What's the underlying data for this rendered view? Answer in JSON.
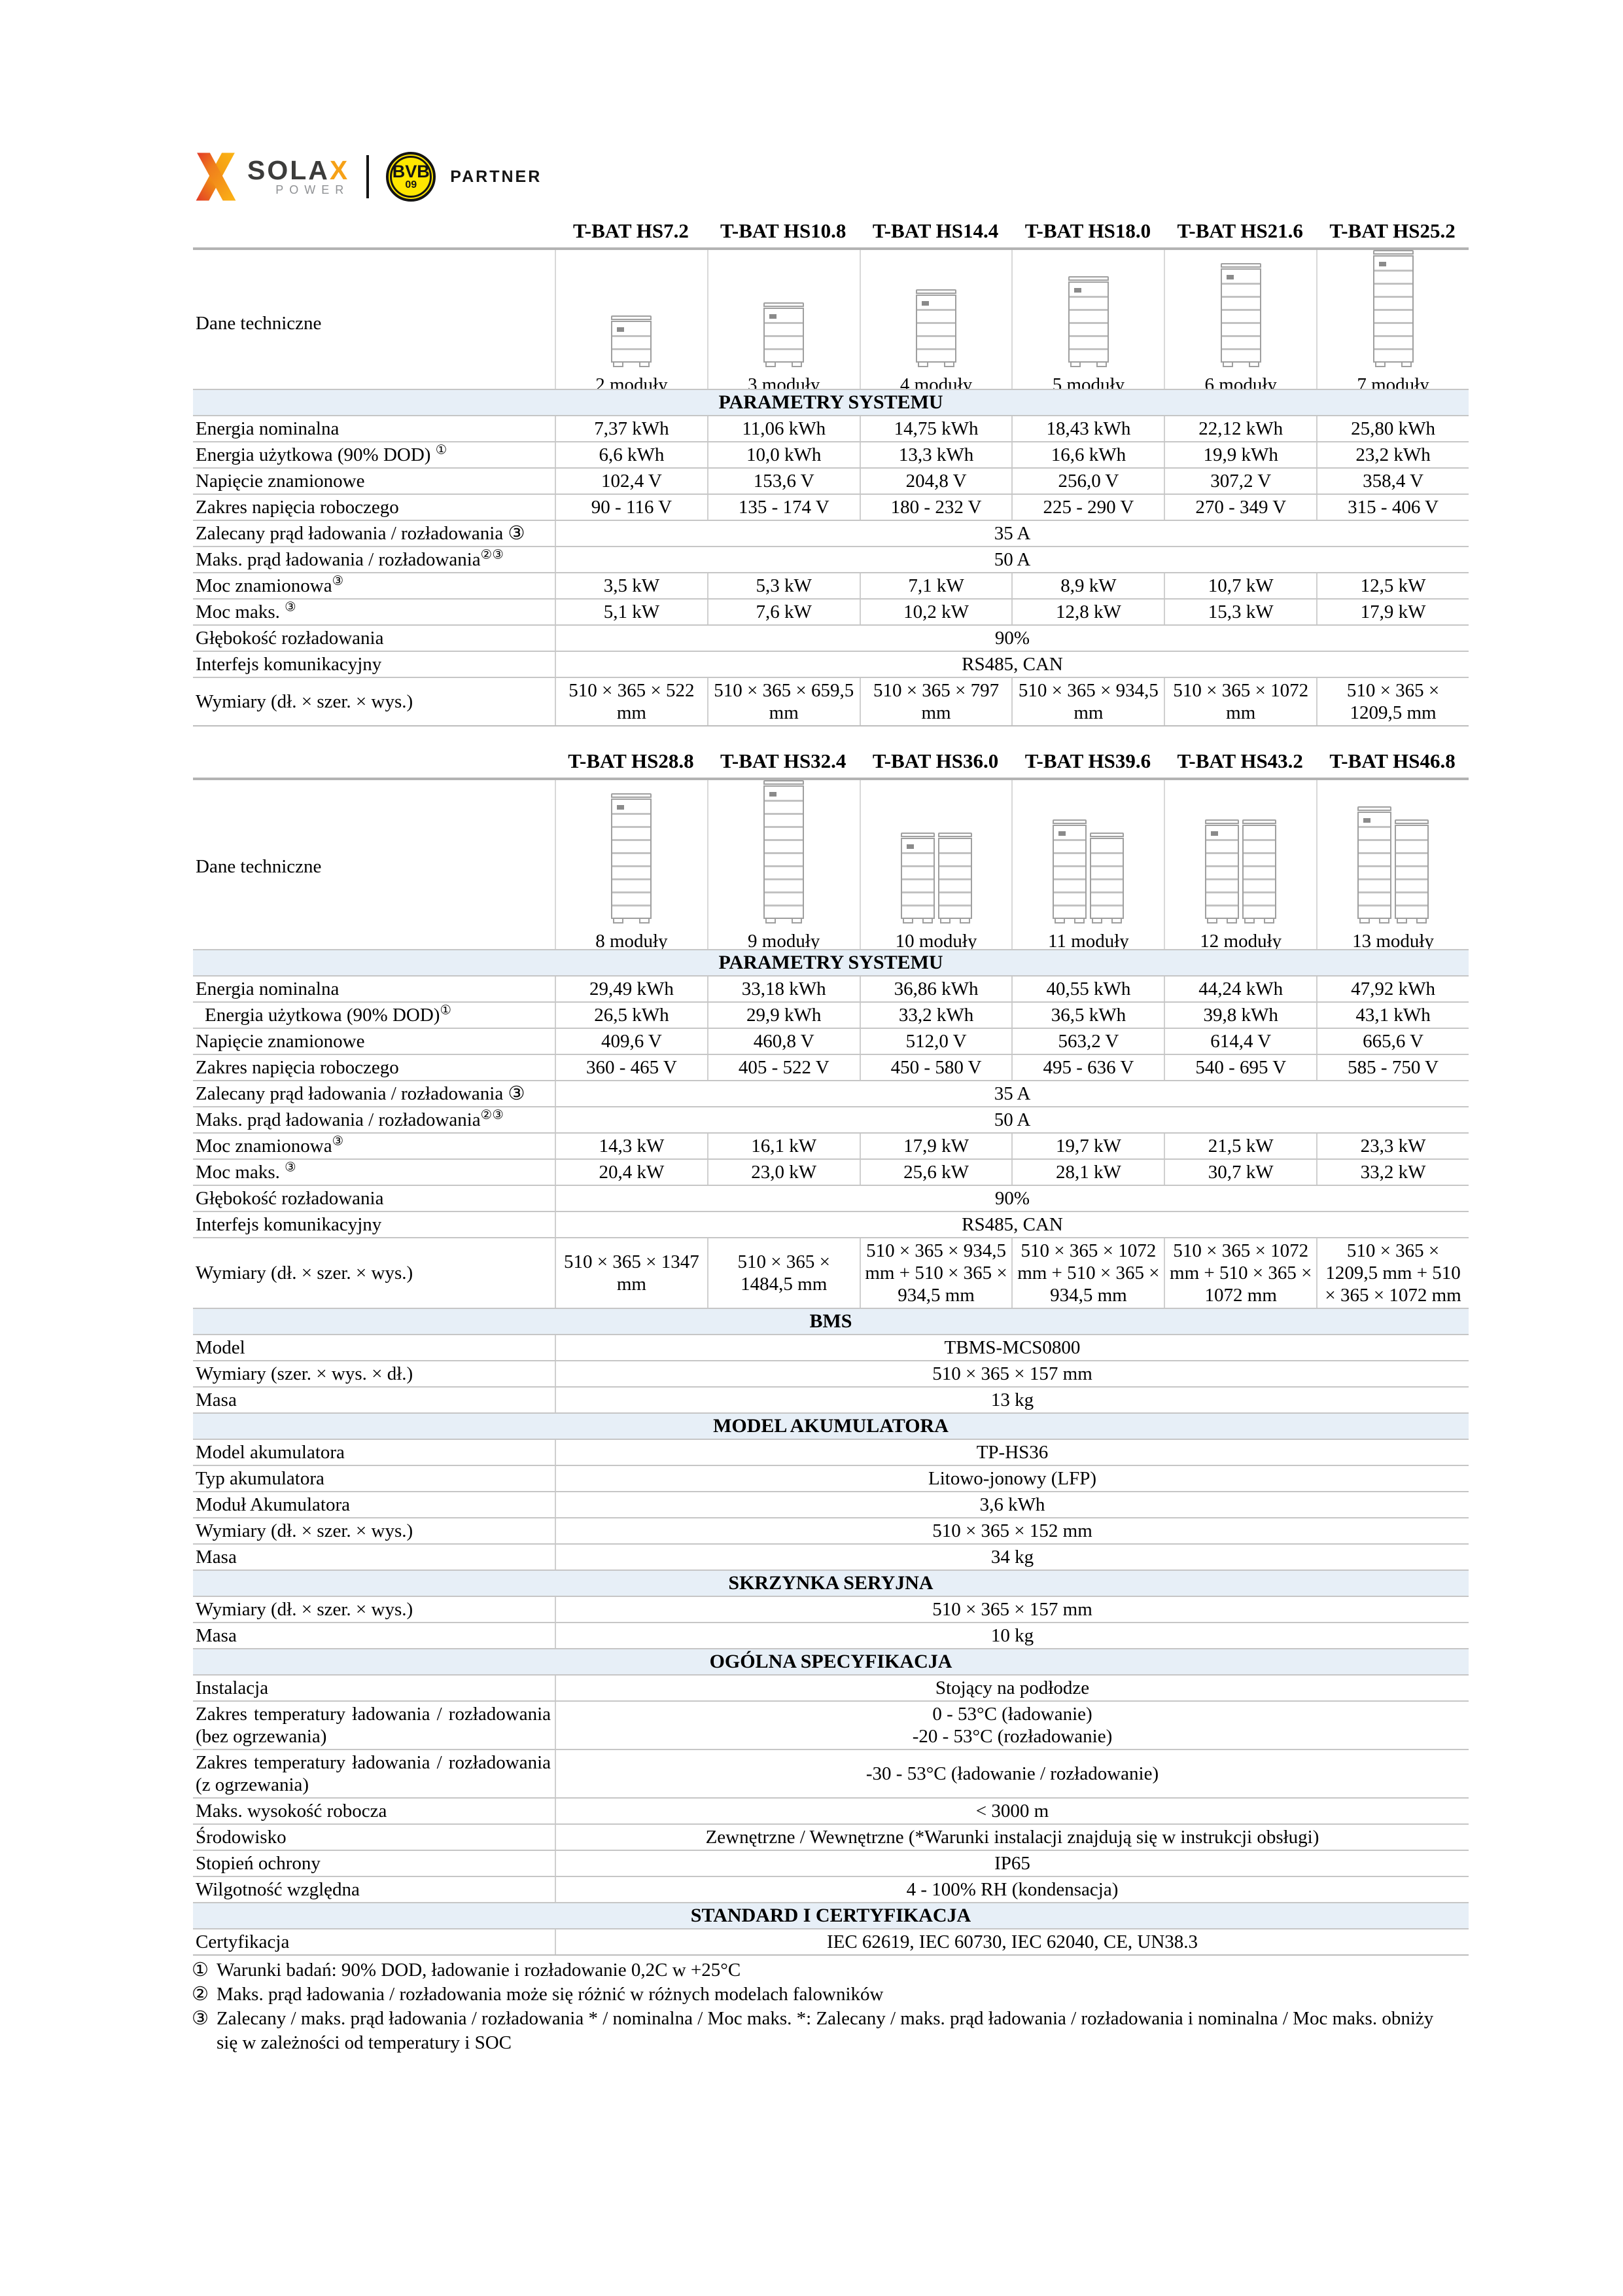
{
  "logo": {
    "sola": "SOLA",
    "x": "X",
    "power": "POWER",
    "bvb": "BVB",
    "bvb_number": "09",
    "partner": "PARTNER"
  },
  "colors": {
    "band_bg": "#e7eff7",
    "brand_orange": "#f6a117",
    "bvb_yellow": "#ffe600",
    "line_gray": "#c6c6c6"
  },
  "tables": [
    {
      "id": "table1",
      "corner_label": "Dane techniczne",
      "models": [
        "T-BAT HS7.2",
        "T-BAT HS10.8",
        "T-BAT HS14.4",
        "T-BAT HS18.0",
        "T-BAT HS21.6",
        "T-BAT HS25.2"
      ],
      "modules": [
        {
          "label": "2 moduły",
          "count": 2,
          "layout": "single"
        },
        {
          "label": "3 moduły",
          "count": 3,
          "layout": "single"
        },
        {
          "label": "4 moduły",
          "count": 4,
          "layout": "single"
        },
        {
          "label": "5 moduły",
          "count": 5,
          "layout": "single"
        },
        {
          "label": "6 moduły",
          "count": 6,
          "layout": "single"
        },
        {
          "label": "7 moduły",
          "count": 7,
          "layout": "single"
        }
      ],
      "rows": [
        {
          "t": "band",
          "label": "PARAMETRY SYSTEMU"
        },
        {
          "t": "cells",
          "label": "Energia nominalna",
          "values": [
            "7,37 kWh",
            "11,06 kWh",
            "14,75 kWh",
            "18,43 kWh",
            "22,12 kWh",
            "25,80 kWh"
          ]
        },
        {
          "t": "cells",
          "label": "Energia użytkowa (90% DOD) ",
          "sup": "①",
          "values": [
            "6,6 kWh",
            "10,0 kWh",
            "13,3 kWh",
            "16,6 kWh",
            "19,9 kWh",
            "23,2 kWh"
          ]
        },
        {
          "t": "cells",
          "label": "Napięcie znamionowe",
          "values": [
            "102,4 V",
            "153,6 V",
            "204,8 V",
            "256,0 V",
            "307,2 V",
            "358,4 V"
          ]
        },
        {
          "t": "cells",
          "label": "Zakres napięcia roboczego",
          "values": [
            "90 - 116 V",
            "135 - 174 V",
            "180 - 232 V",
            "225 - 290 V",
            "270 - 349 V",
            "315 - 406 V"
          ]
        },
        {
          "t": "span",
          "label": "Zalecany prąd ładowania / rozładowania ③",
          "justify": true,
          "value": "35 A"
        },
        {
          "t": "span",
          "label": "Maks. prąd ładowania / rozładowania",
          "sup": "②③",
          "value": "50 A"
        },
        {
          "t": "cells",
          "label": "Moc znamionowa",
          "sup": "③",
          "values": [
            "3,5 kW",
            "5,3 kW",
            "7,1 kW",
            "8,9 kW",
            "10,7 kW",
            "12,5 kW"
          ]
        },
        {
          "t": "cells",
          "label": "Moc maks. ",
          "sup": "③",
          "values": [
            "5,1 kW",
            "7,6 kW",
            "10,2 kW",
            "12,8 kW",
            "15,3 kW",
            "17,9 kW"
          ]
        },
        {
          "t": "span",
          "label": "Głębokość rozładowania",
          "value": "90%"
        },
        {
          "t": "span",
          "label": "Interfejs komunikacyjny",
          "value": "RS485, CAN"
        },
        {
          "t": "cells",
          "label": "Wymiary (dł. × szer. × wys.)",
          "values": [
            "510 × 365 × 522 mm",
            "510 × 365 × 659,5 mm",
            "510 × 365 × 797 mm",
            "510 × 365 × 934,5 mm",
            "510 × 365 × 1072 mm",
            "510 × 365 × 1209,5 mm"
          ]
        }
      ]
    },
    {
      "id": "table2",
      "corner_label": "Dane techniczne",
      "models": [
        "T-BAT HS28.8",
        "T-BAT HS32.4",
        "T-BAT HS36.0",
        "T-BAT HS39.6",
        "T-BAT HS43.2",
        "T-BAT HS46.8"
      ],
      "modules": [
        {
          "label": "8 moduły",
          "count": 8,
          "layout": "single"
        },
        {
          "label": "9 moduły",
          "count": 9,
          "layout": "single"
        },
        {
          "label": "10 moduły",
          "count": 10,
          "layout": "double"
        },
        {
          "label": "11 moduły",
          "count": 11,
          "layout": "double"
        },
        {
          "label": "12 moduły",
          "count": 12,
          "layout": "double"
        },
        {
          "label": "13 moduły",
          "count": 13,
          "layout": "double"
        }
      ],
      "rows": [
        {
          "t": "band",
          "label": "PARAMETRY SYSTEMU"
        },
        {
          "t": "cells",
          "label": "Energia nominalna",
          "values": [
            "29,49 kWh",
            "33,18 kWh",
            "36,86 kWh",
            "40,55 kWh",
            "44,24 kWh",
            "47,92 kWh"
          ]
        },
        {
          "t": "cells",
          "label": "Energia użytkowa (90% DOD)",
          "sup": "①",
          "indent": true,
          "values": [
            "26,5 kWh",
            "29,9 kWh",
            "33,2 kWh",
            "36,5 kWh",
            "39,8 kWh",
            "43,1 kWh"
          ]
        },
        {
          "t": "cells",
          "label": "Napięcie znamionowe",
          "values": [
            "409,6 V",
            "460,8 V",
            "512,0 V",
            "563,2 V",
            "614,4 V",
            "665,6 V"
          ]
        },
        {
          "t": "cells",
          "label": "Zakres napięcia roboczego",
          "values": [
            "360 - 465 V",
            "405 - 522 V",
            "450 - 580 V",
            "495 - 636 V",
            "540 - 695 V",
            "585 - 750 V"
          ]
        },
        {
          "t": "span",
          "label": "Zalecany prąd ładowania / rozładowania ③",
          "justify": true,
          "value": "35 A"
        },
        {
          "t": "span",
          "label": "Maks. prąd ładowania / rozładowania",
          "sup": "②③",
          "value": "50 A"
        },
        {
          "t": "cells",
          "label": "Moc znamionowa",
          "sup": "③",
          "values": [
            "14,3 kW",
            "16,1 kW",
            "17,9 kW",
            "19,7 kW",
            "21,5 kW",
            "23,3 kW"
          ]
        },
        {
          "t": "cells",
          "label": "Moc maks. ",
          "sup": "③",
          "values": [
            "20,4 kW",
            "23,0 kW",
            "25,6 kW",
            "28,1 kW",
            "30,7 kW",
            "33,2 kW"
          ]
        },
        {
          "t": "span",
          "label": "Głębokość rozładowania",
          "value": "90%"
        },
        {
          "t": "span",
          "label": "Interfejs komunikacyjny",
          "value": "RS485, CAN"
        },
        {
          "t": "cells",
          "label": "Wymiary (dł. × szer. × wys.)",
          "values": [
            "510 × 365 × 1347 mm",
            "510 × 365 × 1484,5 mm",
            "510 × 365 × 934,5 mm + 510 × 365 × 934,5 mm",
            "510 × 365 × 1072 mm + 510 × 365 × 934,5 mm",
            "510 × 365 × 1072 mm + 510 × 365 × 1072 mm",
            "510 × 365 × 1209,5 mm + 510 × 365 × 1072 mm"
          ]
        },
        {
          "t": "band",
          "label": "BMS"
        },
        {
          "t": "span",
          "label": "Model",
          "value": "TBMS-MCS0800"
        },
        {
          "t": "span",
          "label": "Wymiary (szer. × wys. × dł.)",
          "value": "510 × 365 × 157 mm"
        },
        {
          "t": "span",
          "label": "Masa",
          "value": "13 kg"
        },
        {
          "t": "band",
          "label": "MODEL AKUMULATORA"
        },
        {
          "t": "span",
          "label": "Model akumulatora",
          "value": "TP-HS36"
        },
        {
          "t": "span",
          "label": "Typ akumulatora",
          "value": "Litowo-jonowy (LFP)"
        },
        {
          "t": "span",
          "label": "Moduł Akumulatora",
          "value": "3,6 kWh"
        },
        {
          "t": "span",
          "label": "Wymiary (dł. × szer. × wys.)",
          "value": "510 × 365 × 152 mm"
        },
        {
          "t": "span",
          "label": "Masa",
          "value": "34 kg"
        },
        {
          "t": "band",
          "label": "SKRZYNKA SERYJNA"
        },
        {
          "t": "span",
          "label": "Wymiary (dł. × szer. × wys.)",
          "value": "510 × 365 × 157 mm"
        },
        {
          "t": "span",
          "label": "Masa",
          "value": "10 kg"
        },
        {
          "t": "band",
          "label": "OGÓLNA SPECYFIKACJA"
        },
        {
          "t": "span",
          "label": "Instalacja",
          "value": "Stojący na podłodze"
        },
        {
          "t": "span",
          "label": "Zakres temperatury ładowania / rozładowania (bez ogrzewania)",
          "justify": true,
          "value": "0 - 53°C (ładowanie)\n-20 - 53°C (rozładowanie)"
        },
        {
          "t": "span",
          "label": "Zakres temperatury ładowania / rozładowania (z ogrzewania)",
          "justify": true,
          "value": "-30 - 53°C (ładowanie / rozładowanie)"
        },
        {
          "t": "span",
          "label": "Maks. wysokość robocza",
          "value": "< 3000 m"
        },
        {
          "t": "span",
          "label": "Środowisko",
          "value": "Zewnętrzne / Wewnętrzne (*Warunki instalacji znajdują się w instrukcji obsługi)"
        },
        {
          "t": "span",
          "label": "Stopień ochrony",
          "value": "IP65"
        },
        {
          "t": "span",
          "label": "Wilgotność względna",
          "value": "4 - 100% RH (kondensacja)"
        },
        {
          "t": "band",
          "label": "STANDARD I CERTYFIKACJA"
        },
        {
          "t": "span",
          "label": "Certyfikacja",
          "value": "IEC 62619, IEC 60730, IEC 62040, CE, UN38.3"
        }
      ]
    }
  ],
  "footnotes": [
    {
      "marker": "①",
      "text": "Warunki badań: 90% DOD, ładowanie i rozładowanie 0,2C w +25°C"
    },
    {
      "marker": "②",
      "text": "Maks. prąd ładowania / rozładowania może się różnić w różnych modelach falowników"
    },
    {
      "marker": "③",
      "text": "Zalecany / maks. prąd ładowania / rozładowania * / nominalna / Moc maks. *: Zalecany / maks. prąd ładowania / rozładowania i nominalna / Moc maks. obniży się w zależności od temperatury i SOC"
    }
  ]
}
